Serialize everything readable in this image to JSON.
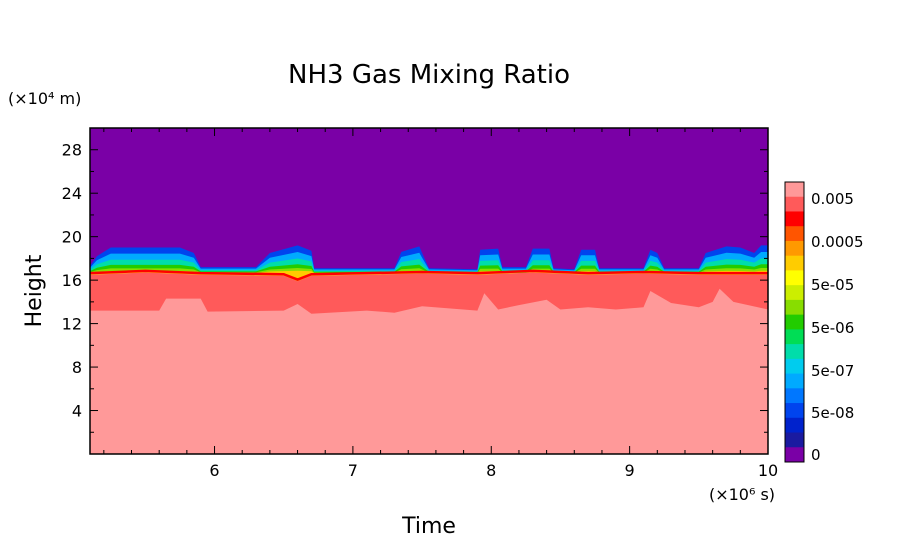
{
  "chart_data": {
    "type": "heatmap",
    "title": "NH3 Gas Mixing Ratio",
    "xlabel": "Time",
    "ylabel": "Height",
    "x_unit_label": "(×10⁶ s)",
    "y_unit_label": "(×10⁴ m)",
    "xlim": [
      5.1,
      10
    ],
    "ylim": [
      0,
      30
    ],
    "xticks": [
      "6",
      "7",
      "8",
      "9",
      "10"
    ],
    "yticks": [
      "4",
      "8",
      "12",
      "16",
      "20",
      "24",
      "28"
    ],
    "colorbar": {
      "levels": [
        "0.005",
        "0.0005",
        "5e-05",
        "5e-06",
        "5e-07",
        "5e-08",
        "0"
      ],
      "colors": [
        "#ff9999",
        "#ff5a5a",
        "#ff0000",
        "#ff5500",
        "#ff9900",
        "#ffcc00",
        "#ffff00",
        "#ccee00",
        "#88dd00",
        "#22cc00",
        "#00dd55",
        "#00ddaa",
        "#00ccee",
        "#00aaff",
        "#0077ff",
        "#0044ee",
        "#0022cc",
        "#1a1aa0",
        "#7a00a6"
      ]
    },
    "regions": [
      {
        "name": "lower",
        "color": "#ff9999",
        "top": [
          [
            5.1,
            13.2
          ],
          [
            5.6,
            13.2
          ],
          [
            5.65,
            14.3
          ],
          [
            5.9,
            14.3
          ],
          [
            5.95,
            13.1
          ],
          [
            6.5,
            13.2
          ],
          [
            6.6,
            13.8
          ],
          [
            6.7,
            12.9
          ],
          [
            7.1,
            13.2
          ],
          [
            7.3,
            13.0
          ],
          [
            7.5,
            13.6
          ],
          [
            7.9,
            13.2
          ],
          [
            7.95,
            14.8
          ],
          [
            8.05,
            13.3
          ],
          [
            8.2,
            13.7
          ],
          [
            8.4,
            14.2
          ],
          [
            8.5,
            13.3
          ],
          [
            8.7,
            13.5
          ],
          [
            8.9,
            13.3
          ],
          [
            9.1,
            13.5
          ],
          [
            9.15,
            15.0
          ],
          [
            9.3,
            13.9
          ],
          [
            9.5,
            13.5
          ],
          [
            9.6,
            14.0
          ],
          [
            9.65,
            15.2
          ],
          [
            9.75,
            14.0
          ],
          [
            10,
            13.3
          ]
        ]
      },
      {
        "name": "middle",
        "color": "#ff5a5a",
        "top": [
          [
            5.1,
            16.5
          ],
          [
            5.5,
            16.7
          ],
          [
            5.9,
            16.5
          ],
          [
            6.5,
            16.4
          ],
          [
            6.6,
            15.9
          ],
          [
            6.7,
            16.4
          ],
          [
            7.5,
            16.6
          ],
          [
            7.9,
            16.5
          ],
          [
            8.3,
            16.7
          ],
          [
            8.7,
            16.5
          ],
          [
            9.1,
            16.6
          ],
          [
            9.5,
            16.5
          ],
          [
            10,
            16.5
          ]
        ]
      },
      {
        "name": "transition",
        "color": "#00ccee",
        "top": [
          [
            5.1,
            17.3
          ],
          [
            5.15,
            18.2
          ],
          [
            5.25,
            19.0
          ],
          [
            5.75,
            19.0
          ],
          [
            5.85,
            18.5
          ],
          [
            5.9,
            17.2
          ],
          [
            6.3,
            17.2
          ],
          [
            6.4,
            18.5
          ],
          [
            6.6,
            19.2
          ],
          [
            6.7,
            18.7
          ],
          [
            6.72,
            17.1
          ],
          [
            7.3,
            17.1
          ],
          [
            7.35,
            18.6
          ],
          [
            7.48,
            19.1
          ],
          [
            7.5,
            18.5
          ],
          [
            7.55,
            17.1
          ],
          [
            7.9,
            17.0
          ],
          [
            7.92,
            18.8
          ],
          [
            8.05,
            18.9
          ],
          [
            8.08,
            17.2
          ],
          [
            8.25,
            17.2
          ],
          [
            8.3,
            18.9
          ],
          [
            8.42,
            18.9
          ],
          [
            8.45,
            17.1
          ],
          [
            8.6,
            17.0
          ],
          [
            8.65,
            18.8
          ],
          [
            8.75,
            18.8
          ],
          [
            8.78,
            17.1
          ],
          [
            9.1,
            17.1
          ],
          [
            9.15,
            18.8
          ],
          [
            9.2,
            18.5
          ],
          [
            9.25,
            17.1
          ],
          [
            9.5,
            17.1
          ],
          [
            9.55,
            18.5
          ],
          [
            9.7,
            19.1
          ],
          [
            9.8,
            19.0
          ],
          [
            9.9,
            18.5
          ],
          [
            9.95,
            19.2
          ],
          [
            10,
            19.2
          ]
        ]
      }
    ]
  }
}
